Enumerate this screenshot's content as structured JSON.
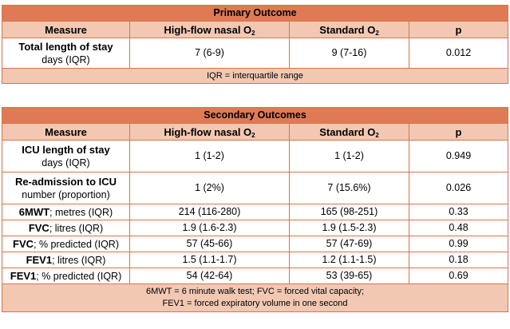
{
  "primary": {
    "title": "Primary Outcome",
    "headers": {
      "measure": "Measure",
      "hfno": "High-flow nasal O",
      "hfno_sub": "2",
      "std": "Standard O",
      "std_sub": "2",
      "p": "p"
    },
    "rows": [
      {
        "label_bold": "Total length of stay",
        "label_rest": "days (IQR)",
        "hfno": "7 (6-9)",
        "std": "9 (7-16)",
        "p": "0.012"
      }
    ],
    "note": "IQR = interquartile range"
  },
  "secondary": {
    "title": "Secondary Outcomes",
    "headers": {
      "measure": "Measure",
      "hfno": "High-flow nasal O",
      "hfno_sub": "2",
      "std": "Standard O",
      "std_sub": "2",
      "p": "p"
    },
    "rows": [
      {
        "label_bold": "ICU length of stay",
        "label_rest": "days (IQR)",
        "hfno": "1 (1-2)",
        "std": "1 (1-2)",
        "p": "0.949"
      },
      {
        "label_bold": "Re-admission to ICU",
        "label_rest": "number (proportion)",
        "hfno": "1 (2%)",
        "std": "7 (15.6%)",
        "p": "0.026"
      },
      {
        "label_bold": "6MWT",
        "label_rest": "; metres (IQR)",
        "hfno": "214 (116-280)",
        "std": "165 (98-251)",
        "p": "0.33"
      },
      {
        "label_bold": "FVC",
        "label_rest": "; litres (IQR)",
        "hfno": "1.9 (1.6-2.3)",
        "std": "1.9 (1.5-2.3)",
        "p": "0.48"
      },
      {
        "label_bold": "FVC",
        "label_rest": "; % predicted (IQR)",
        "hfno": "57 (45-66)",
        "std": "57 (47-69)",
        "p": "0.99"
      },
      {
        "label_bold": "FEV1",
        "label_rest": "; litres (IQR)",
        "hfno": "1.5 (1.1-1.7)",
        "std": "1.2 (1.1-1.5)",
        "p": "0.18"
      },
      {
        "label_bold": "FEV1",
        "label_rest": "; % predicted (IQR)",
        "hfno": "54 (42-64)",
        "std": "53 (39-65)",
        "p": "0.69"
      }
    ],
    "note_line1": "6MWT = 6 minute walk test; FVC = forced vital capacity;",
    "note_line2": "FEV1 = forced expiratory volume in one second"
  }
}
